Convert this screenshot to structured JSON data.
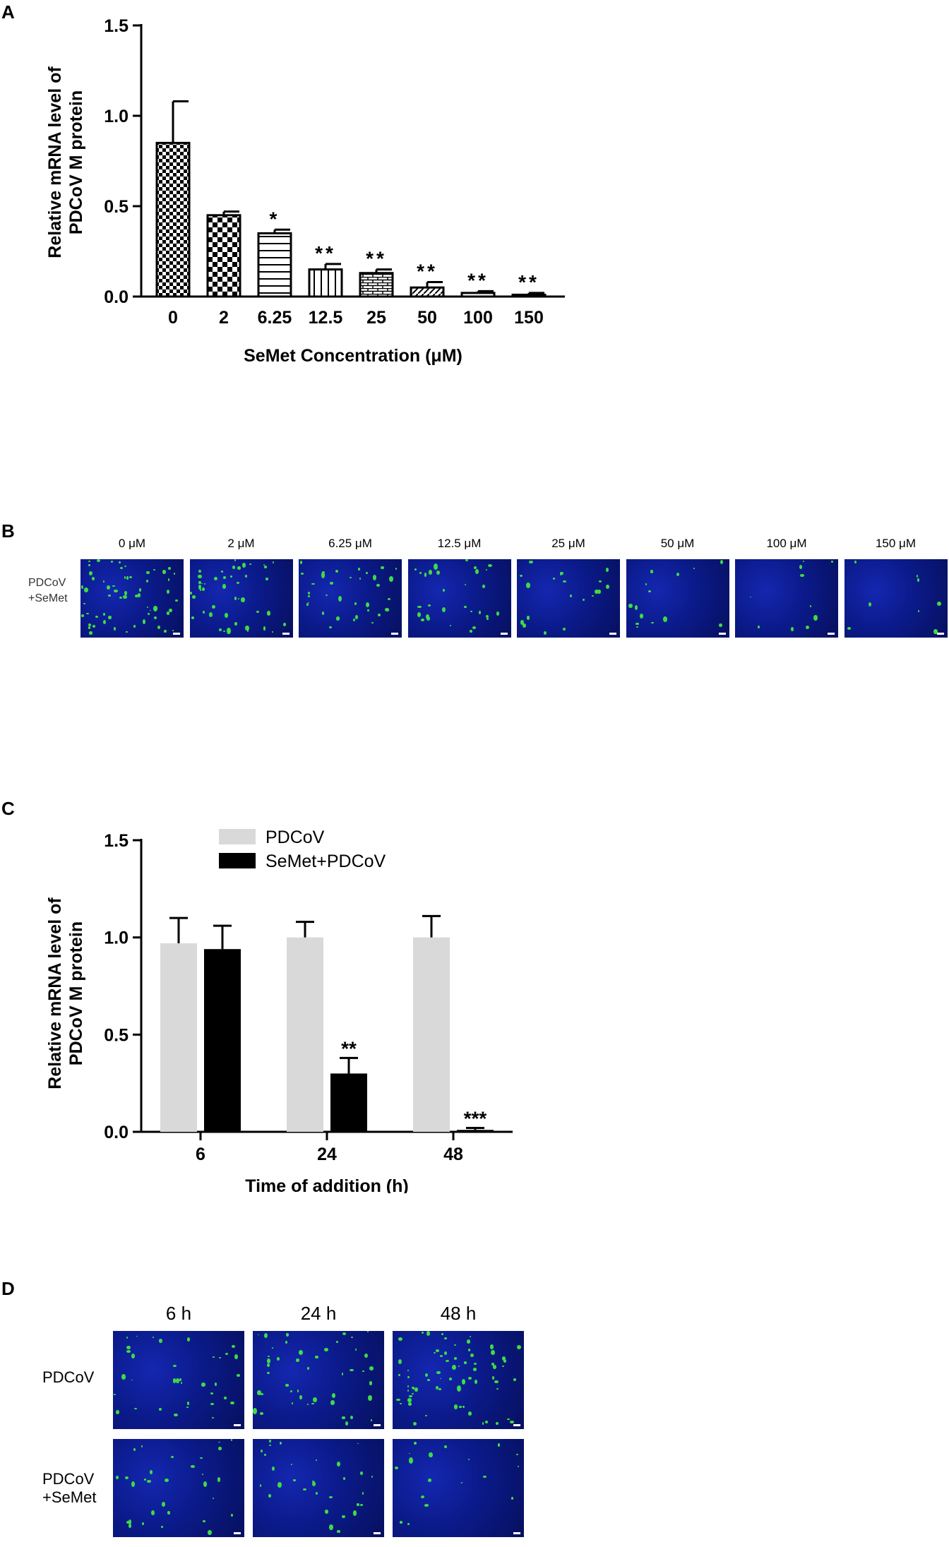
{
  "panels": {
    "a": {
      "letter": "A"
    },
    "b": {
      "letter": "B",
      "row_label_1": "PDCoV",
      "row_label_2": "+SeMet",
      "column_labels": [
        "0 μM",
        "2 μM",
        "6.25 μM",
        "12.5 μM",
        "25 μM",
        "50 μM",
        "100 μM",
        "150 μM"
      ]
    },
    "c": {
      "letter": "C"
    },
    "d": {
      "letter": "D",
      "column_labels": [
        "6 h",
        "24 h",
        "48 h"
      ],
      "row_labels": [
        "PDCoV",
        "PDCoV\n+SeMet"
      ]
    }
  },
  "colors": {
    "nuclei": "#0b1a8a",
    "virus": "#3cdc46",
    "pdcov_bar": "#d9d9d9",
    "semet_bar": "#000000"
  },
  "chart_data": [
    {
      "type": "bar",
      "xlabel": "SeMet Concentration (μM)",
      "ylabel_line1": "Relative mRNA level  of",
      "ylabel_line2": "PDCoV M protein",
      "ylim": [
        0,
        1.5
      ],
      "yticks": [
        "0.0",
        "0.5",
        "1.0",
        "1.5"
      ],
      "categories": [
        "0",
        "2",
        "6.25",
        "12.5",
        "25",
        "50",
        "100",
        "150"
      ],
      "values": [
        0.85,
        0.45,
        0.35,
        0.15,
        0.13,
        0.05,
        0.02,
        0.01
      ],
      "errors": [
        0.23,
        0.02,
        0.02,
        0.03,
        0.02,
        0.03,
        0.01,
        0.01
      ],
      "significance": [
        "",
        "",
        "*",
        "**",
        "**",
        "**",
        "**",
        "**"
      ],
      "patterns": [
        "checker-small",
        "checker-large",
        "horizontal-lines",
        "vertical-lines",
        "bricks",
        "diagonal-lines",
        "solid",
        "solid"
      ]
    },
    {
      "type": "bar",
      "xlabel": "Time of addition (h)",
      "ylabel_line1": "Relative mRNA level  of",
      "ylabel_line2": "PDCoV M protein",
      "ylim": [
        0,
        1.5
      ],
      "yticks": [
        "0.0",
        "0.5",
        "1.0",
        "1.5"
      ],
      "categories": [
        "6",
        "24",
        "48"
      ],
      "series": [
        {
          "name": "PDCoV",
          "values": [
            0.97,
            1.0,
            1.0
          ],
          "errors": [
            0.13,
            0.08,
            0.11
          ],
          "significance": [
            "",
            "",
            ""
          ]
        },
        {
          "name": "SeMet+PDCoV",
          "values": [
            0.94,
            0.3,
            0.01
          ],
          "errors": [
            0.12,
            0.08,
            0.01
          ],
          "significance": [
            "",
            "**",
            "***"
          ]
        }
      ],
      "legend_position": "top"
    }
  ]
}
